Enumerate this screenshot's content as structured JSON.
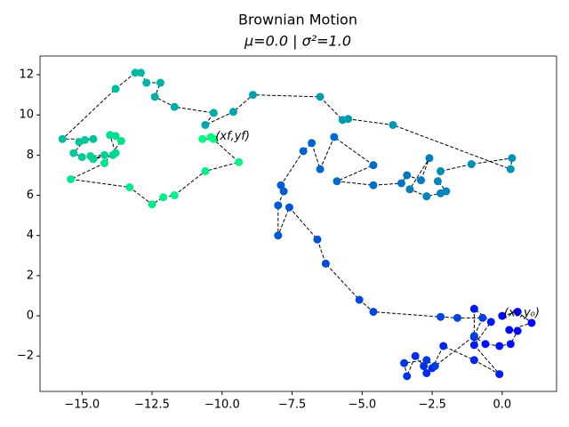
{
  "chart_data": {
    "type": "scatter-path",
    "title": "Brownian Motion",
    "subtitle": "μ=0.0 | σ²=1.0",
    "colormap": "winter",
    "line_style": "dashed",
    "x": [
      0,
      0.55,
      1.05,
      0.25,
      0.55,
      0.3,
      -0.1,
      -0.6,
      -1.0,
      -1.0,
      -0.4,
      -1.0,
      -0.1,
      -1.0,
      -2.1,
      -2.5,
      -2.7,
      -2.8,
      -3.1,
      -3.4,
      -3.5,
      -2.7,
      -2.4,
      -1.0,
      -0.7,
      -1.6,
      -2.2,
      -4.6,
      -5.1,
      -6.3,
      -6.6,
      -7.6,
      -8.0,
      -8.0,
      -7.8,
      -7.9,
      -7.1,
      -6.8,
      -6.5,
      -6.0,
      -4.6,
      -5.9,
      -4.6,
      -3.6,
      -3.4,
      -2.9,
      -2.6,
      -3.3,
      -2.7,
      -2.2,
      -2.0,
      -2.3,
      -2.2,
      -1.1,
      0.35,
      0.3,
      -3.9,
      -5.5,
      -5.7,
      -6.5,
      -8.9,
      -9.6,
      -10.6,
      -10.3,
      -11.7,
      -12.4,
      -12.2,
      -12.7,
      -12.9,
      -13.1,
      -13.8,
      -15.7,
      -14.6,
      -15.1,
      -14.9,
      -15.3,
      -15.0,
      -14.7,
      -14.2,
      -14.6,
      -13.9,
      -13.8,
      -14.0,
      -13.8,
      -13.6,
      -14.2,
      -15.4,
      -13.3,
      -12.5,
      -12.1,
      -11.7,
      -10.6,
      -9.4,
      -10.4,
      -10.7,
      -10.3
    ],
    "values": [
      0,
      0.2,
      -0.35,
      -0.7,
      -0.75,
      -1.4,
      -1.5,
      -1.4,
      -1.05,
      0.35,
      -0.3,
      -1.45,
      -2.9,
      -2.2,
      -1.5,
      -2.6,
      -2.85,
      -2.5,
      -2.0,
      -3.0,
      -2.35,
      -2.2,
      -2.5,
      -1.0,
      -0.1,
      -0.1,
      -0.05,
      0.2,
      0.8,
      2.6,
      3.8,
      5.4,
      4.0,
      5.5,
      6.2,
      6.5,
      8.2,
      8.6,
      7.3,
      8.9,
      7.5,
      6.7,
      6.5,
      6.6,
      7.0,
      6.75,
      7.85,
      6.3,
      5.95,
      6.1,
      6.2,
      6.7,
      7.2,
      7.55,
      7.85,
      7.3,
      9.5,
      9.8,
      9.75,
      10.9,
      11.0,
      10.15,
      9.5,
      10.1,
      10.4,
      10.9,
      11.6,
      11.6,
      12.1,
      12.1,
      11.3,
      8.8,
      8.8,
      8.65,
      8.75,
      8.1,
      7.9,
      7.95,
      8.0,
      7.8,
      8.0,
      8.1,
      9.0,
      8.95,
      8.7,
      7.6,
      6.8,
      6.4,
      5.55,
      5.9,
      6.0,
      7.2,
      7.65,
      8.9,
      8.8,
      8.8
    ],
    "annotations": [
      {
        "text": "(x₀,y₀)",
        "index": 0
      },
      {
        "text": "(xf,yf)",
        "index": 95
      }
    ],
    "xlim": [
      -16.5,
      1.94
    ],
    "ylim": [
      -3.76,
      12.93
    ],
    "xticks": [
      {
        "value": -15,
        "label": "−15.0"
      },
      {
        "value": -12.5,
        "label": "−12.5"
      },
      {
        "value": -10,
        "label": "−10.0"
      },
      {
        "value": -7.5,
        "label": "−7.5"
      },
      {
        "value": -5,
        "label": "−5.0"
      },
      {
        "value": -2.5,
        "label": "−2.5"
      },
      {
        "value": 0,
        "label": "0.0"
      }
    ],
    "yticks": [
      {
        "value": -2,
        "label": "−2"
      },
      0,
      2,
      4,
      6,
      8,
      10,
      12
    ]
  }
}
